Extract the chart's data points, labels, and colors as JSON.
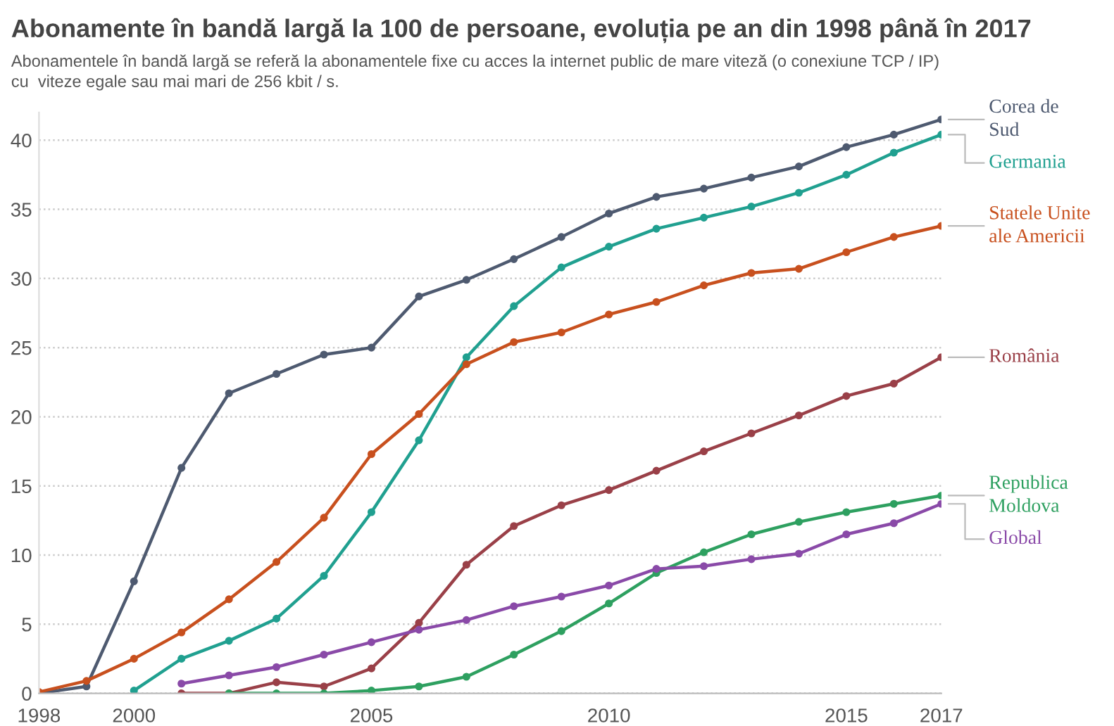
{
  "chart_data": {
    "type": "line",
    "title": "Abonamente în bandă largă la 100 de persoane, evoluția pe an din 1998 până în 2017",
    "subtitle": "Abonamentele în bandă largă se referă la abonamentele fixe cu acces la internet public de mare viteză (o conexiune TCP / IP)\ncu  viteze egale sau mai mari de 256 kbit / s.",
    "x": [
      1998,
      1999,
      2000,
      2001,
      2002,
      2003,
      2004,
      2005,
      2006,
      2007,
      2008,
      2009,
      2010,
      2011,
      2012,
      2013,
      2014,
      2015,
      2016,
      2017
    ],
    "series": [
      {
        "name": "Corea de\nSud",
        "color": "#4e5a70",
        "values": [
          0.0,
          0.5,
          8.1,
          16.3,
          21.7,
          23.1,
          24.5,
          25.0,
          28.7,
          29.9,
          31.4,
          33.0,
          34.7,
          35.9,
          36.5,
          37.3,
          38.1,
          39.5,
          40.4,
          41.5
        ]
      },
      {
        "name": "Germania",
        "color": "#20a090",
        "values": [
          null,
          null,
          0.2,
          2.5,
          3.8,
          5.4,
          8.5,
          13.1,
          18.3,
          24.3,
          28.0,
          30.8,
          32.3,
          33.6,
          34.4,
          35.2,
          36.2,
          37.5,
          39.1,
          40.4
        ]
      },
      {
        "name": "Statele Unite\nale Americii",
        "color": "#c8501e",
        "values": [
          0.1,
          0.9,
          2.5,
          4.4,
          6.8,
          9.5,
          12.7,
          17.3,
          20.2,
          23.8,
          25.4,
          26.1,
          27.4,
          28.3,
          29.5,
          30.4,
          30.7,
          31.9,
          33.0,
          33.8
        ]
      },
      {
        "name": "România",
        "color": "#9a4048",
        "values": [
          null,
          null,
          null,
          0.0,
          0.0,
          0.8,
          0.5,
          1.8,
          5.1,
          9.3,
          12.1,
          13.6,
          14.7,
          16.1,
          17.5,
          18.8,
          20.1,
          21.5,
          22.4,
          24.3
        ]
      },
      {
        "name": "Republica\nMoldova",
        "color": "#2ea060",
        "values": [
          null,
          null,
          null,
          null,
          0.0,
          0.0,
          0.0,
          0.2,
          0.5,
          1.2,
          2.8,
          4.5,
          6.5,
          8.7,
          10.2,
          11.5,
          12.4,
          13.1,
          13.7,
          14.3
        ]
      },
      {
        "name": "Global",
        "color": "#8a4aa8",
        "values": [
          null,
          null,
          null,
          0.7,
          1.3,
          1.9,
          2.8,
          3.7,
          4.6,
          5.3,
          6.3,
          7.0,
          7.8,
          9.0,
          9.2,
          9.7,
          10.1,
          11.5,
          12.3,
          13.7
        ]
      }
    ],
    "xlim": [
      1998,
      2017
    ],
    "xticks": [
      1998,
      2000,
      2005,
      2010,
      2015,
      2017
    ],
    "ylim": [
      0,
      42
    ],
    "yticks": [
      0,
      5,
      10,
      15,
      20,
      25,
      30,
      35,
      40
    ],
    "grid": "y",
    "marker": "circle",
    "line_style": "solid",
    "legend": false
  }
}
